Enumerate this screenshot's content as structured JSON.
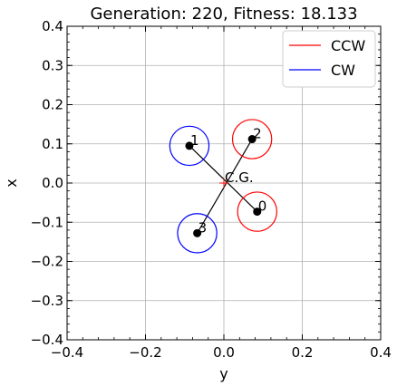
{
  "chart_data": {
    "type": "scatter",
    "title": "Generation: 220, Fitness: 18.133",
    "xlabel": "y",
    "ylabel": "x",
    "xlim": [
      -0.4,
      0.4
    ],
    "ylim": [
      -0.4,
      0.4
    ],
    "xticks": [
      -0.4,
      -0.2,
      0.0,
      0.2,
      0.4
    ],
    "yticks": [
      -0.4,
      -0.3,
      -0.2,
      -0.1,
      0.0,
      0.1,
      0.2,
      0.3,
      0.4
    ],
    "xtick_labels": [
      "−0.4",
      "−0.2",
      "0.0",
      "0.2",
      "0.4"
    ],
    "ytick_labels": [
      "−0.4",
      "−0.3",
      "−0.2",
      "−0.1",
      "0.0",
      "0.1",
      "0.2",
      "0.3",
      "0.4"
    ],
    "grid": true,
    "legend": {
      "placement": "top-right",
      "entries": [
        {
          "label": "CCW",
          "color": "#ff0000"
        },
        {
          "label": "CW",
          "color": "#0000ff"
        }
      ]
    },
    "cg": {
      "label": "C.G.",
      "x": 0.0,
      "y": 0.0
    },
    "rotor_radius": 0.05,
    "rotors": [
      {
        "label": "0",
        "x": 0.085,
        "y": -0.073,
        "direction": "CCW",
        "color": "#ff0000"
      },
      {
        "label": "1",
        "x": -0.088,
        "y": 0.095,
        "direction": "CW",
        "color": "#0000ff"
      },
      {
        "label": "2",
        "x": 0.072,
        "y": 0.112,
        "direction": "CCW",
        "color": "#ff0000"
      },
      {
        "label": "3",
        "x": -0.068,
        "y": -0.128,
        "direction": "CW",
        "color": "#0000ff"
      }
    ]
  }
}
